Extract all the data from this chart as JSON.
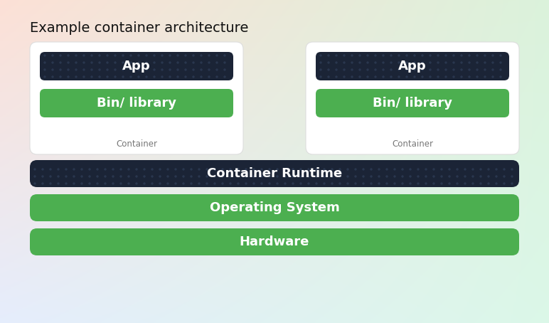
{
  "title": "Example container architecture",
  "title_fontsize": 14,
  "dark_box_color": "#1b2436",
  "green_box_color": "#4caf50",
  "white_box_color": "#ffffff",
  "container_label_color": "#777777",
  "container1_label": "Container",
  "container1_app": "App",
  "container1_bin": "Bin/ library",
  "container2_label": "Container",
  "container2_app": "App",
  "container2_bin": "Bin/ library",
  "runtime_text": "Container Runtime",
  "os_text": "Operating System",
  "hardware_text": "Hardware",
  "bg_tl": [
    0.99,
    0.88,
    0.84
  ],
  "bg_tr": [
    0.86,
    0.95,
    0.86
  ],
  "bg_bl": [
    0.9,
    0.93,
    0.99
  ],
  "bg_br": [
    0.86,
    0.97,
    0.91
  ]
}
